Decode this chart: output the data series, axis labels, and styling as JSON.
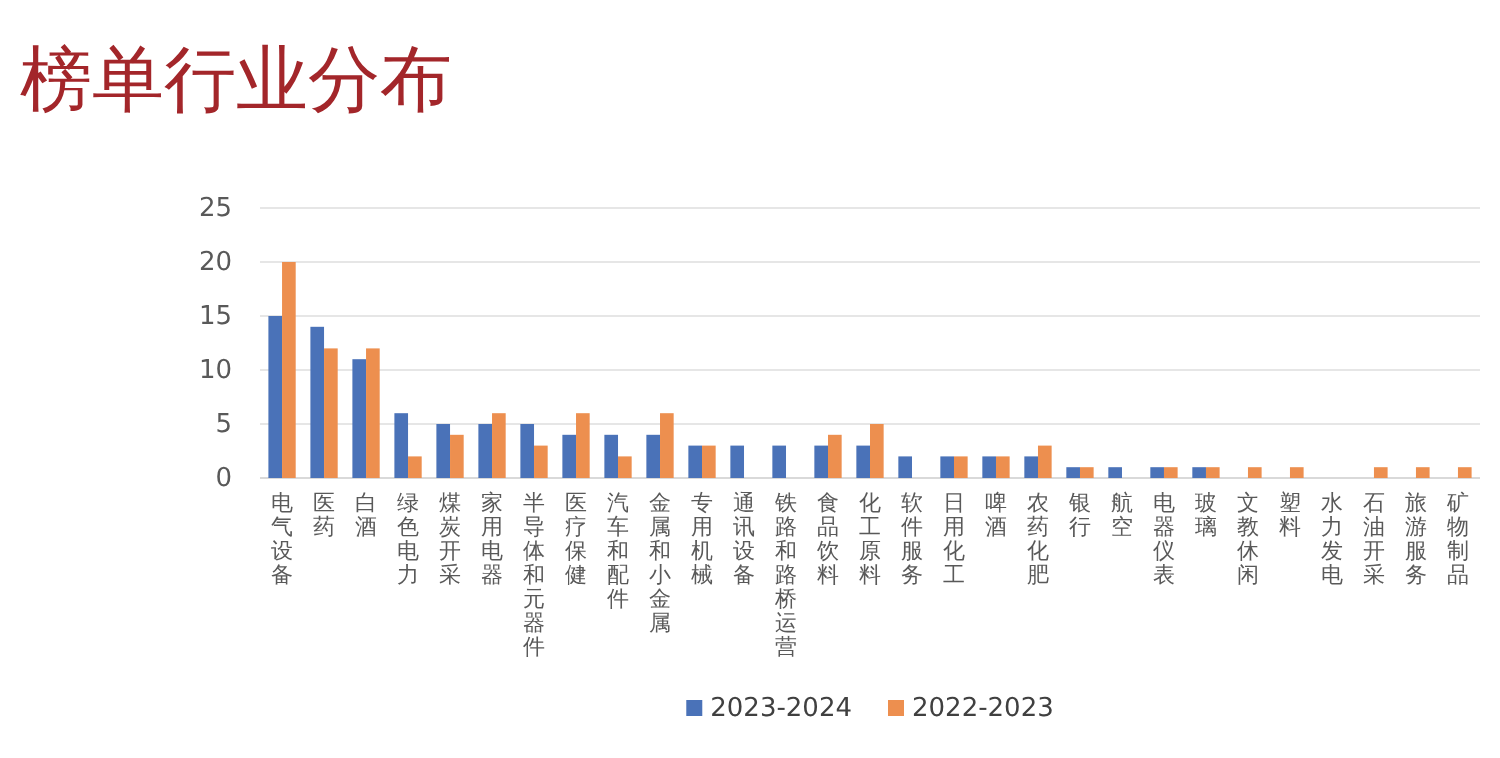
{
  "chart_data": {
    "type": "bar",
    "title": "榜单行业分布",
    "categories": [
      "电气设备",
      "医药",
      "白酒",
      "绿色电力",
      "煤炭开采",
      "家用电器",
      "半导体和元器件",
      "医疗保健",
      "汽车和配件",
      "金属和小金属",
      "专用机械",
      "通讯设备",
      "铁路和路桥运营",
      "食品饮料",
      "化工原料",
      "软件服务",
      "日用化工",
      "啤酒",
      "农药化肥",
      "银行",
      "航空",
      "电器仪表",
      "玻璃",
      "文教休闲",
      "塑料",
      "水力发电",
      "石油开采",
      "旅游服务",
      "矿物制品"
    ],
    "series": [
      {
        "name": "2023-2024",
        "color": "#4a72b8",
        "values": [
          15,
          14,
          11,
          6,
          5,
          5,
          5,
          4,
          4,
          4,
          3,
          3,
          3,
          3,
          3,
          2,
          2,
          2,
          2,
          1,
          1,
          1,
          1,
          0,
          0,
          0,
          0,
          0,
          0
        ]
      },
      {
        "name": "2022-2023",
        "color": "#ed8f4f",
        "values": [
          20,
          12,
          12,
          2,
          4,
          6,
          3,
          6,
          2,
          6,
          3,
          0,
          0,
          4,
          5,
          0,
          2,
          2,
          3,
          1,
          0,
          1,
          1,
          1,
          1,
          0,
          1,
          1,
          1
        ]
      }
    ],
    "ylim": [
      0,
      25
    ],
    "yticks": [
      0,
      5,
      10,
      15,
      20,
      25
    ],
    "grid": "y",
    "legend": "bottom"
  }
}
